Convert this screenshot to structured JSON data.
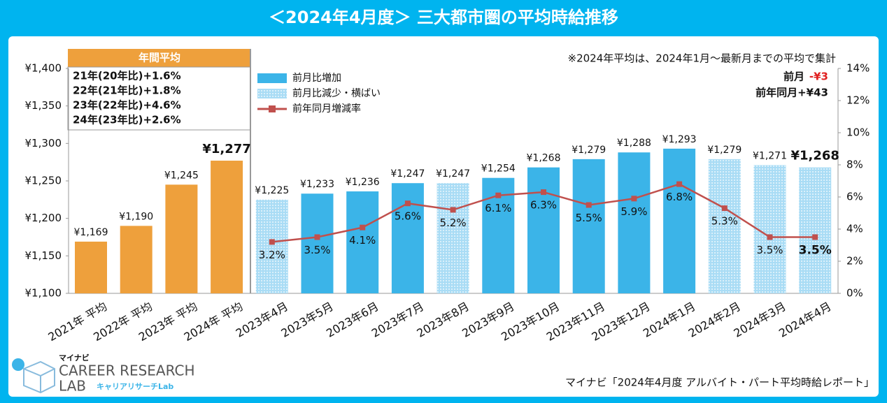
{
  "chart_data": {
    "type": "bar",
    "title": "＜2024年4月度＞ 三大都市圏の平均時給推移",
    "categories": [
      "2021年 平均",
      "2022年 平均",
      "2023年 平均",
      "2024年 平均",
      "2023年4月",
      "2023年5月",
      "2023年6月",
      "2023年7月",
      "2023年8月",
      "2023年9月",
      "2023年10月",
      "2023年11月",
      "2023年12月",
      "2024年1月",
      "2024年2月",
      "2024年3月",
      "2024年4月"
    ],
    "series": [
      {
        "name": "年間平均",
        "color": "#eea03c",
        "values": [
          1169,
          1190,
          1245,
          1277,
          null,
          null,
          null,
          null,
          null,
          null,
          null,
          null,
          null,
          null,
          null,
          null,
          null
        ],
        "value_labels": [
          "¥1,169",
          "¥1,190",
          "¥1,245",
          "¥1,277",
          null,
          null,
          null,
          null,
          null,
          null,
          null,
          null,
          null,
          null,
          null,
          null,
          null
        ]
      },
      {
        "name": "前月比増加",
        "color": "#3bb4e8",
        "values": [
          null,
          null,
          null,
          null,
          null,
          1233,
          1236,
          1247,
          null,
          1254,
          1268,
          1279,
          1288,
          1293,
          null,
          null,
          null
        ],
        "value_labels": [
          null,
          null,
          null,
          null,
          null,
          "¥1,233",
          "¥1,236",
          "¥1,247",
          null,
          "¥1,254",
          "¥1,268",
          "¥1,279",
          "¥1,288",
          "¥1,293",
          null,
          null,
          null
        ]
      },
      {
        "name": "前月比減少・横ばい",
        "color": "#a9dcf5",
        "values": [
          null,
          null,
          null,
          null,
          1225,
          null,
          null,
          null,
          1247,
          null,
          null,
          null,
          null,
          null,
          1279,
          1271,
          1268
        ],
        "value_labels": [
          null,
          null,
          null,
          null,
          "¥1,225",
          null,
          null,
          null,
          "¥1,247",
          null,
          null,
          null,
          null,
          null,
          "¥1,279",
          "¥1,271",
          "¥1,268"
        ]
      },
      {
        "name": "前年同月増減率",
        "color": "#c0504d",
        "axis": "y2",
        "type": "line",
        "values": [
          null,
          null,
          null,
          null,
          3.2,
          3.5,
          4.1,
          5.6,
          5.2,
          6.1,
          6.3,
          5.5,
          5.9,
          6.8,
          5.3,
          3.5,
          3.5
        ],
        "value_labels": [
          null,
          null,
          null,
          null,
          "3.2%",
          "3.5%",
          "4.1%",
          "5.6%",
          "5.2%",
          "6.1%",
          "6.3%",
          "5.5%",
          "5.9%",
          "6.8%",
          "5.3%",
          "3.5%",
          "3.5%"
        ]
      }
    ],
    "ylim": [
      1100,
      1400
    ],
    "yticks": [
      {
        "value": 1100,
        "label": "¥1,100"
      },
      {
        "value": 1150,
        "label": "¥1,150"
      },
      {
        "value": 1200,
        "label": "¥1,200"
      },
      {
        "value": 1250,
        "label": "¥1,250"
      },
      {
        "value": 1300,
        "label": "¥1,300"
      },
      {
        "value": 1350,
        "label": "¥1,350"
      },
      {
        "value": 1400,
        "label": "¥1,400"
      }
    ],
    "y2lim": [
      0,
      14
    ],
    "y2ticks": [
      {
        "value": 0,
        "label": "0%"
      },
      {
        "value": 2,
        "label": "2%"
      },
      {
        "value": 4,
        "label": "4%"
      },
      {
        "value": 6,
        "label": "6%"
      },
      {
        "value": 8,
        "label": "8%"
      },
      {
        "value": 10,
        "label": "10%"
      },
      {
        "value": 12,
        "label": "12%"
      },
      {
        "value": 14,
        "label": "14%"
      }
    ],
    "annotations": [
      "21年(20年比)+1.6%",
      "22年(21年比)+1.8%",
      "23年(22年比)+4.6%",
      "24年(23年比)+2.6%"
    ],
    "note": "※2024年平均は、2024年1月～最新月までの平均で集計",
    "mom_label": "前月",
    "mom_value": "-¥3",
    "yoy": "前年同月+¥43",
    "source": "マイナビ「2024年4月度 アルバイト・パート平均時給レポート」",
    "logo": {
      "brand": "マイナビ",
      "name": "CAREER RESEARCH",
      "name2": "LAB",
      "sub": "キャリアリサーチLab"
    }
  }
}
